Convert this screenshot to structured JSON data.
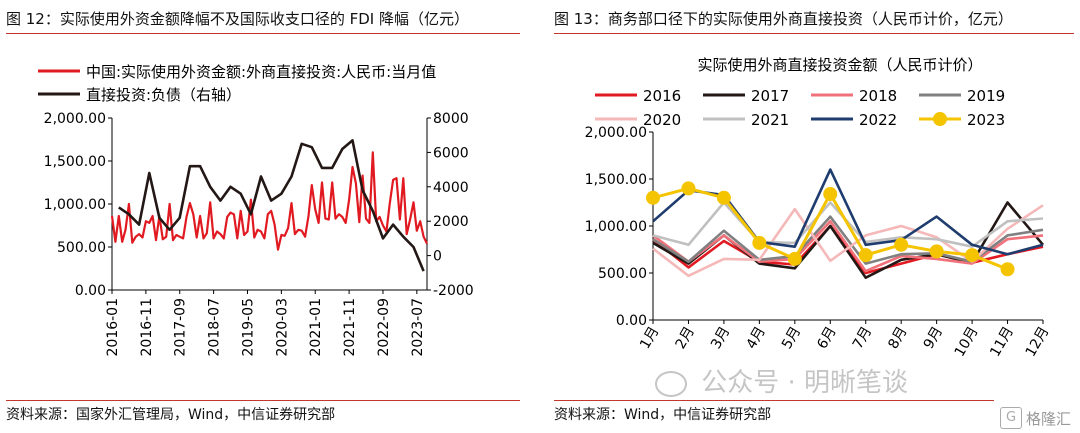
{
  "left_panel": {
    "title": "图 12：实际使用外资金额降幅不及国际收支口径的 FDI 降幅（亿元）",
    "source": "资料来源：国家外汇管理局，Wind，中信证券研究部"
  },
  "right_panel": {
    "title": "图 13：商务部口径下的实际使用外商直接投资（人民币计价，亿元）",
    "source": "资料来源：Wind，中信证券研究部"
  },
  "watermark": {
    "text": "公众号 · 明晰笔谈",
    "corner_logo": "格隆汇"
  },
  "colors": {
    "red": "#e11a22",
    "black": "#231815",
    "rule": "#c0392b"
  },
  "chart_data": [
    {
      "type": "line",
      "legend": "top-left",
      "x_tick_labels": [
        "2016-01",
        "2016-11",
        "2017-09",
        "2018-07",
        "2019-05",
        "2020-03",
        "2021-01",
        "2021-11",
        "2022-09",
        "2023-07"
      ],
      "y_left": {
        "ticks": [
          "2,000.00",
          "1,500.00",
          "1,000.00",
          "500.00",
          "0.00"
        ],
        "range": [
          0,
          2000
        ]
      },
      "y_right": {
        "ticks": [
          "8000",
          "6000",
          "4000",
          "2000",
          "0",
          "-2000"
        ],
        "range": [
          -2000,
          8000
        ]
      },
      "series": [
        {
          "name": "中国:实际使用外资金额:外商直接投资:人民币:当月值",
          "axis": "left",
          "color": "#e11a22",
          "x": [
            "2016-01",
            "2016-02",
            "2016-03",
            "2016-04",
            "2016-05",
            "2016-06",
            "2016-07",
            "2016-08",
            "2016-09",
            "2016-10",
            "2016-11",
            "2016-12",
            "2017-01",
            "2017-02",
            "2017-03",
            "2017-04",
            "2017-05",
            "2017-06",
            "2017-07",
            "2017-08",
            "2017-09",
            "2017-10",
            "2017-11",
            "2017-12",
            "2018-01",
            "2018-02",
            "2018-03",
            "2018-04",
            "2018-05",
            "2018-06",
            "2018-07",
            "2018-08",
            "2018-09",
            "2018-10",
            "2018-11",
            "2018-12",
            "2019-01",
            "2019-02",
            "2019-03",
            "2019-04",
            "2019-05",
            "2019-06",
            "2019-07",
            "2019-08",
            "2019-09",
            "2019-10",
            "2019-11",
            "2019-12",
            "2020-01",
            "2020-02",
            "2020-03",
            "2020-04",
            "2020-05",
            "2020-06",
            "2020-07",
            "2020-08",
            "2020-09",
            "2020-10",
            "2020-11",
            "2020-12",
            "2021-01",
            "2021-02",
            "2021-03",
            "2021-04",
            "2021-05",
            "2021-06",
            "2021-07",
            "2021-08",
            "2021-09",
            "2021-10",
            "2021-11",
            "2021-12",
            "2022-01",
            "2022-02",
            "2022-03",
            "2022-04",
            "2022-05",
            "2022-06",
            "2022-07",
            "2022-08",
            "2022-09",
            "2022-10",
            "2022-11",
            "2022-12",
            "2023-01",
            "2023-02",
            "2023-03",
            "2023-04",
            "2023-05",
            "2023-06",
            "2023-07",
            "2023-08",
            "2023-09",
            "2023-10"
          ],
          "values": [
            860,
            560,
            860,
            560,
            700,
            1000,
            550,
            620,
            650,
            610,
            800,
            780,
            860,
            580,
            860,
            590,
            620,
            1000,
            580,
            640,
            620,
            600,
            850,
            1010,
            880,
            610,
            860,
            600,
            660,
            1020,
            600,
            680,
            650,
            600,
            850,
            900,
            880,
            600,
            920,
            640,
            680,
            1050,
            610,
            700,
            680,
            600,
            880,
            920,
            760,
            470,
            640,
            630,
            720,
            1010,
            650,
            700,
            690,
            620,
            860,
            1220,
            940,
            780,
            1250,
            830,
            820,
            1250,
            830,
            880,
            850,
            780,
            1050,
            1430,
            1240,
            790,
            1330,
            830,
            780,
            1600,
            800,
            850,
            750,
            680,
            1000,
            1280,
            1300,
            820,
            1300,
            650,
            820,
            1020,
            690,
            800,
            620,
            540
          ]
        },
        {
          "name": "直接投资:负债（右轴）",
          "axis": "right",
          "color": "#231815",
          "x": [
            "2016-03",
            "2016-06",
            "2016-09",
            "2016-12",
            "2017-03",
            "2017-06",
            "2017-09",
            "2017-12",
            "2018-03",
            "2018-06",
            "2018-09",
            "2018-12",
            "2019-03",
            "2019-06",
            "2019-09",
            "2019-12",
            "2020-03",
            "2020-06",
            "2020-09",
            "2020-12",
            "2021-03",
            "2021-06",
            "2021-09",
            "2021-12",
            "2022-03",
            "2022-06",
            "2022-09",
            "2022-12",
            "2023-03",
            "2023-06",
            "2023-09"
          ],
          "values": [
            2800,
            2400,
            1800,
            4800,
            2200,
            1500,
            2200,
            5200,
            5200,
            4000,
            3200,
            4000,
            3600,
            2400,
            4600,
            3200,
            3600,
            4600,
            6500,
            6300,
            5100,
            5100,
            6200,
            6700,
            3800,
            2600,
            1000,
            1800,
            1100,
            500,
            -900
          ]
        }
      ]
    },
    {
      "type": "line",
      "title": "实际使用外商直接投资金额（人民币计价）",
      "legend": "top",
      "categories": [
        "1月",
        "2月",
        "3月",
        "4月",
        "5月",
        "6月",
        "7月",
        "8月",
        "9月",
        "10月",
        "11月",
        "12月"
      ],
      "y_ticks": [
        "2,000.00",
        "1,500.00",
        "1,000.00",
        "500.00",
        "0.00"
      ],
      "ylim": [
        0,
        2000
      ],
      "series": [
        {
          "name": "2016",
          "color": "#e11a22",
          "values": [
            860,
            560,
            840,
            620,
            590,
            1000,
            500,
            600,
            700,
            610,
            700,
            780
          ]
        },
        {
          "name": "2017",
          "color": "#231815",
          "values": [
            820,
            600,
            900,
            600,
            550,
            1000,
            450,
            640,
            700,
            610,
            1250,
            800
          ]
        },
        {
          "name": "2018",
          "color": "#f0717a",
          "values": [
            900,
            620,
            900,
            620,
            650,
            1050,
            520,
            680,
            650,
            600,
            860,
            900
          ]
        },
        {
          "name": "2019",
          "color": "#808080",
          "values": [
            860,
            620,
            950,
            640,
            680,
            1100,
            600,
            700,
            710,
            620,
            900,
            960
          ]
        },
        {
          "name": "2020",
          "color": "#f5b8b8",
          "values": [
            760,
            470,
            650,
            640,
            1180,
            630,
            900,
            1000,
            880,
            620,
            970,
            1220
          ]
        },
        {
          "name": "2021",
          "color": "#c0c0c0",
          "values": [
            900,
            800,
            1250,
            830,
            820,
            1250,
            830,
            880,
            860,
            780,
            1050,
            1080
          ]
        },
        {
          "name": "2022",
          "color": "#1f3c6e",
          "values": [
            1050,
            1380,
            1330,
            830,
            780,
            1600,
            800,
            850,
            1100,
            800,
            700,
            800
          ]
        },
        {
          "name": "2023",
          "color": "#f5c400",
          "values": [
            1300,
            1400,
            1300,
            820,
            650,
            1340,
            690,
            800,
            730,
            690,
            540,
            null
          ]
        }
      ]
    }
  ]
}
